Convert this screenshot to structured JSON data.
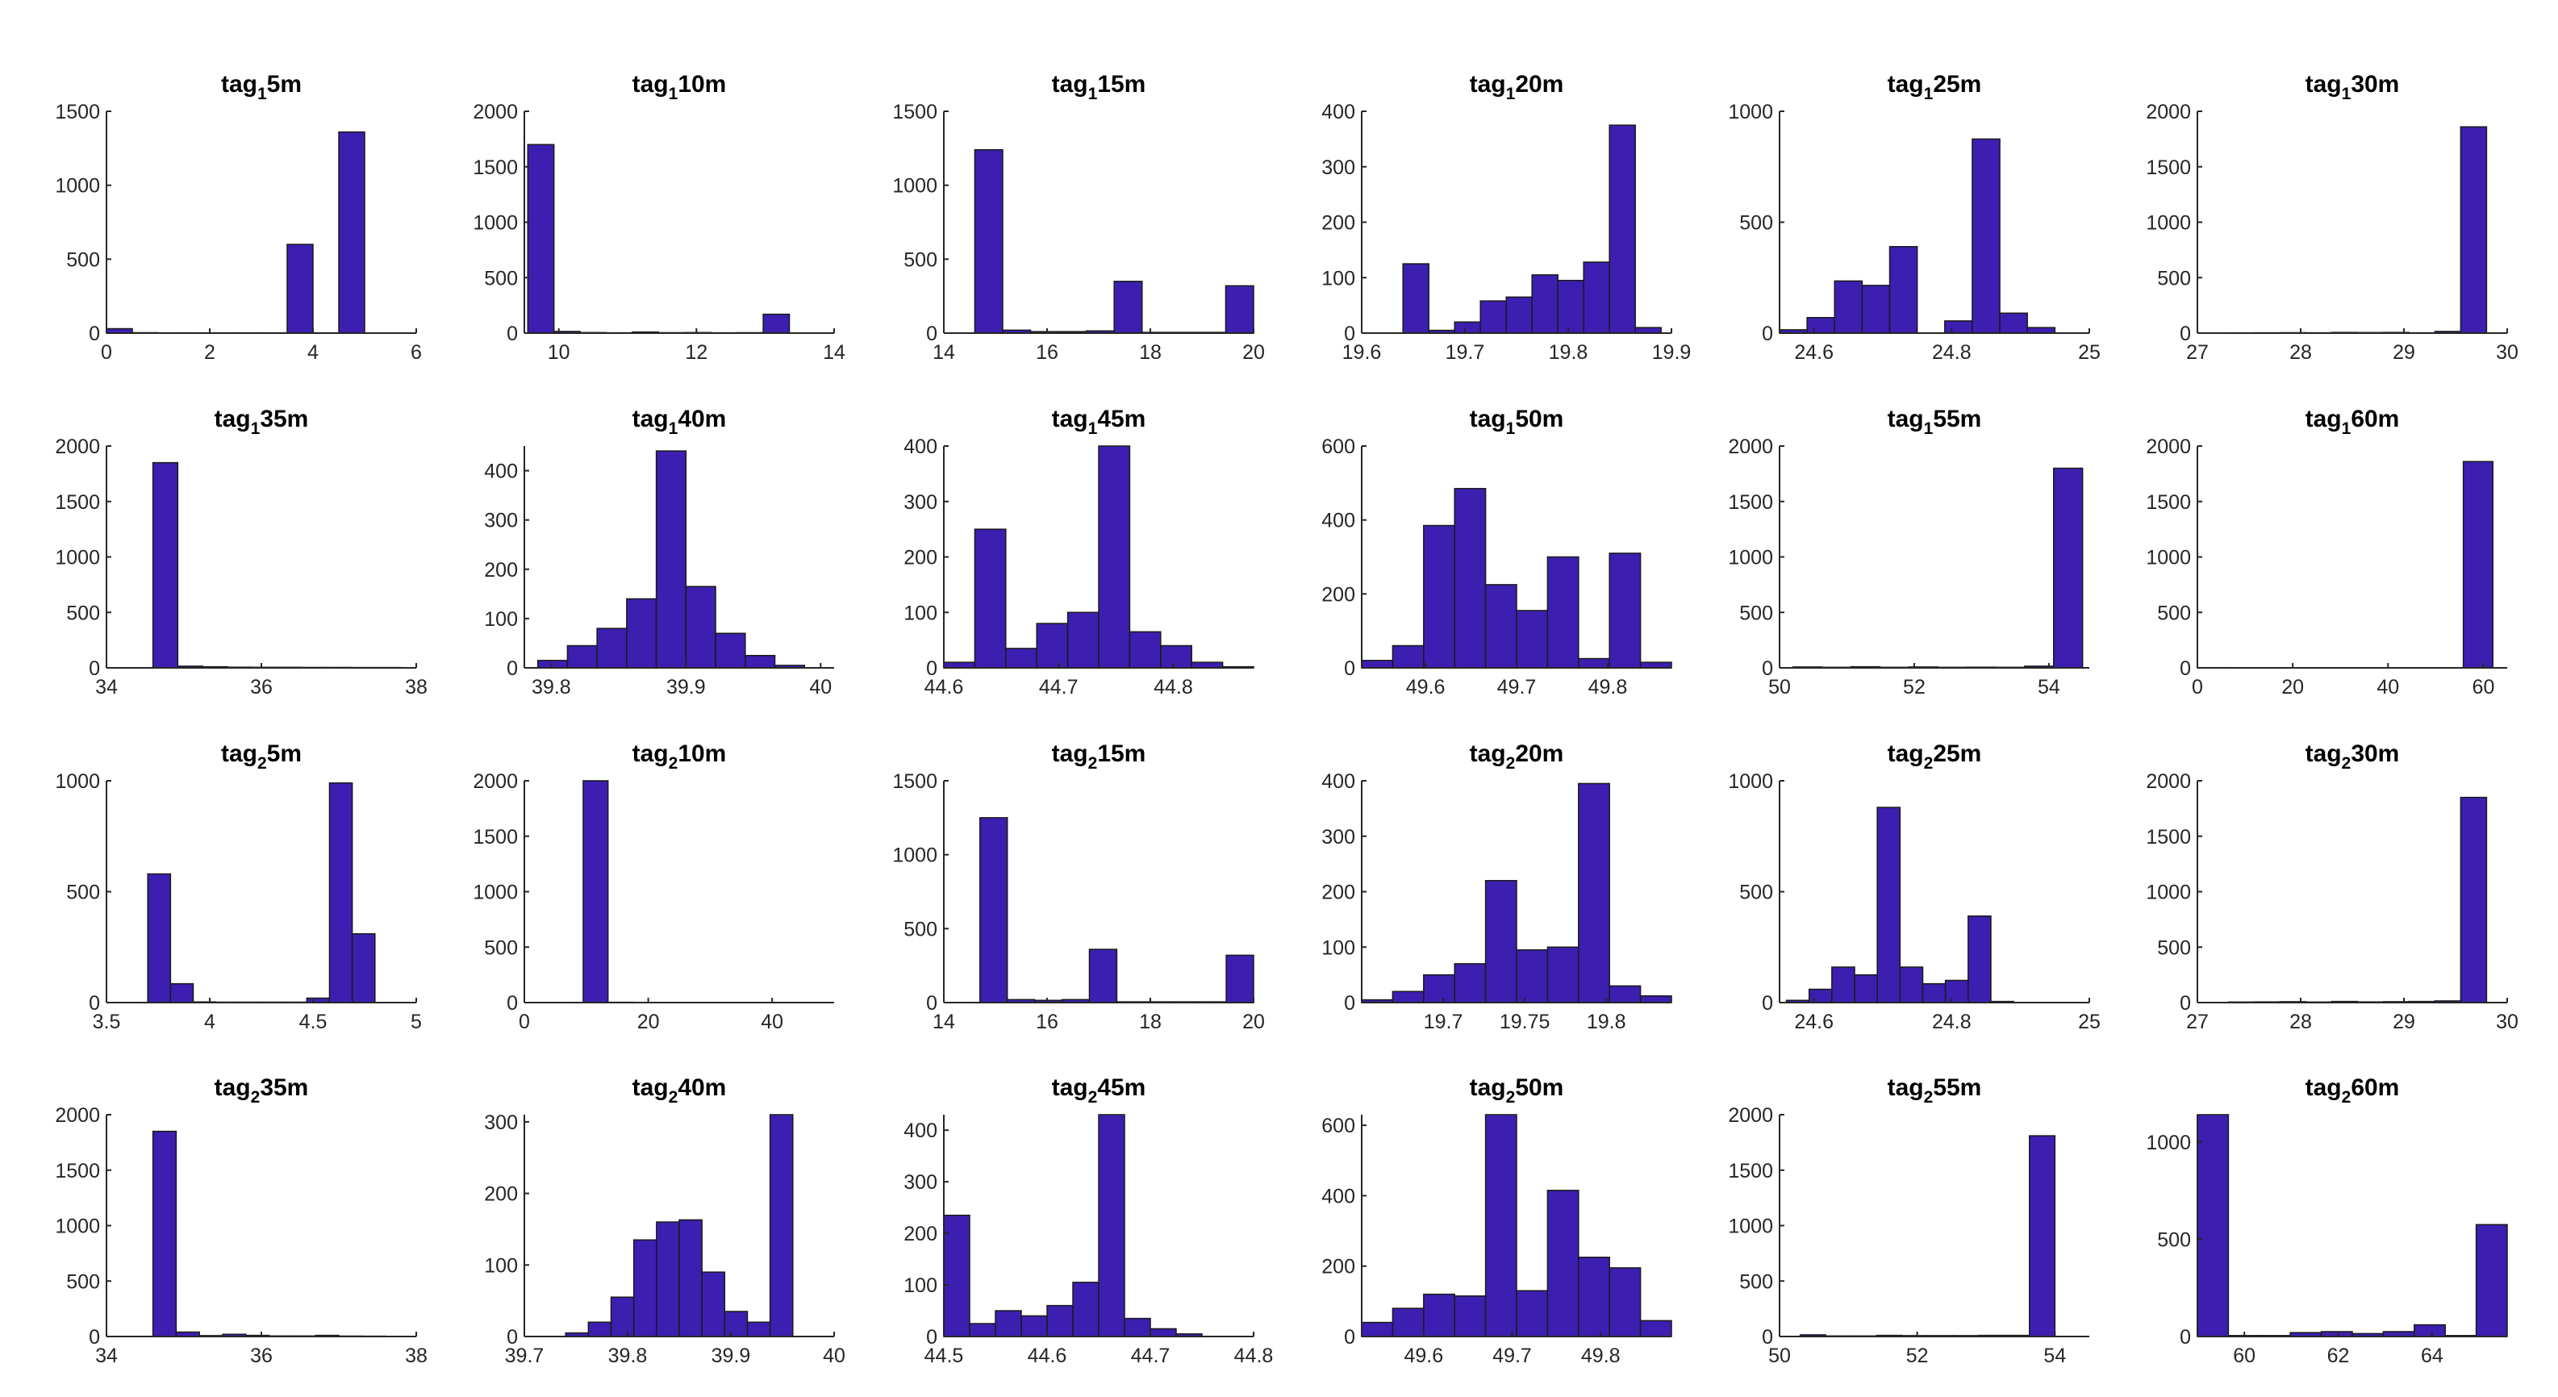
{
  "chart_data": [
    {
      "type": "bar",
      "title": "tag₁5m",
      "title_base": "tag",
      "title_sub": "1",
      "title_rest": "5m",
      "xlim": [
        0,
        6
      ],
      "ylim": [
        0,
        1500
      ],
      "xticks": [
        0,
        2,
        4,
        6
      ],
      "yticks": [
        0,
        500,
        1000,
        1500
      ],
      "bin_edges": [
        0,
        0.5,
        1,
        1.5,
        2,
        2.5,
        3,
        3.5,
        4,
        4.5,
        5
      ],
      "counts": [
        30,
        3,
        2,
        2,
        2,
        2,
        2,
        600,
        2,
        1360
      ]
    },
    {
      "type": "bar",
      "title": "tag₁10m",
      "title_base": "tag",
      "title_sub": "1",
      "title_rest": "10m",
      "xlim": [
        9.5,
        14
      ],
      "ylim": [
        0,
        2000
      ],
      "xticks": [
        10,
        12,
        14
      ],
      "yticks": [
        0,
        500,
        1000,
        1500,
        2000
      ],
      "bin_edges": [
        9.55,
        9.93,
        10.31,
        10.69,
        11.07,
        11.45,
        11.83,
        12.21,
        12.59,
        12.97,
        13.35
      ],
      "counts": [
        1700,
        15,
        5,
        3,
        10,
        4,
        5,
        3,
        4,
        170
      ]
    },
    {
      "type": "bar",
      "title": "tag₁15m",
      "title_base": "tag",
      "title_sub": "1",
      "title_rest": "15m",
      "xlim": [
        14,
        20
      ],
      "ylim": [
        0,
        1500
      ],
      "xticks": [
        14,
        16,
        18,
        20
      ],
      "yticks": [
        0,
        500,
        1000,
        1500
      ],
      "bin_edges": [
        14.6,
        15.14,
        15.68,
        16.22,
        16.76,
        17.3,
        17.84,
        18.38,
        18.92,
        19.46,
        20.0
      ],
      "counts": [
        1240,
        20,
        10,
        10,
        15,
        350,
        5,
        5,
        5,
        320
      ]
    },
    {
      "type": "bar",
      "title": "tag₁20m",
      "title_base": "tag",
      "title_sub": "1",
      "title_rest": "20m",
      "xlim": [
        19.6,
        19.9
      ],
      "ylim": [
        0,
        400
      ],
      "xticks": [
        19.6,
        19.7,
        19.8,
        19.9
      ],
      "yticks": [
        0,
        100,
        200,
        300,
        400
      ],
      "bin_edges": [
        19.64,
        19.665,
        19.69,
        19.715,
        19.74,
        19.765,
        19.79,
        19.815,
        19.84,
        19.865,
        19.89
      ],
      "counts": [
        125,
        5,
        20,
        58,
        65,
        105,
        95,
        128,
        375,
        10
      ]
    },
    {
      "type": "bar",
      "title": "tag₁25m",
      "title_base": "tag",
      "title_sub": "1",
      "title_rest": "25m",
      "xlim": [
        24.55,
        25
      ],
      "ylim": [
        0,
        1000
      ],
      "xticks": [
        24.6,
        24.8,
        25
      ],
      "yticks": [
        0,
        500,
        1000
      ],
      "bin_edges": [
        24.55,
        24.59,
        24.63,
        24.67,
        24.71,
        24.75,
        24.79,
        24.83,
        24.87,
        24.91,
        24.95
      ],
      "counts": [
        15,
        70,
        235,
        215,
        390,
        0,
        55,
        875,
        90,
        25
      ]
    },
    {
      "type": "bar",
      "title": "tag₁30m",
      "title_base": "tag",
      "title_sub": "1",
      "title_rest": "30m",
      "xlim": [
        27,
        30
      ],
      "ylim": [
        0,
        2000
      ],
      "xticks": [
        27,
        28,
        29,
        30
      ],
      "yticks": [
        0,
        500,
        1000,
        1500,
        2000
      ],
      "bin_edges": [
        27.3,
        27.55,
        27.8,
        28.05,
        28.3,
        28.55,
        28.8,
        29.05,
        29.3,
        29.55,
        29.8
      ],
      "counts": [
        2,
        3,
        4,
        3,
        6,
        5,
        6,
        3,
        15,
        1860
      ]
    },
    {
      "type": "bar",
      "title": "tag₁35m",
      "title_base": "tag",
      "title_sub": "1",
      "title_rest": "35m",
      "xlim": [
        34,
        38
      ],
      "ylim": [
        0,
        2000
      ],
      "xticks": [
        34,
        36,
        38
      ],
      "yticks": [
        0,
        500,
        1000,
        1500,
        2000
      ],
      "bin_edges": [
        34.6,
        34.92,
        35.24,
        35.56,
        35.88,
        36.2,
        36.52,
        36.84,
        37.16,
        37.48,
        37.8
      ],
      "counts": [
        1850,
        15,
        10,
        6,
        5,
        5,
        4,
        4,
        3,
        3
      ]
    },
    {
      "type": "bar",
      "title": "tag₁40m",
      "title_base": "tag",
      "title_sub": "1",
      "title_rest": "40m",
      "xlim": [
        39.78,
        40.01
      ],
      "ylim": [
        0,
        450
      ],
      "xticks": [
        39.8,
        39.9,
        40
      ],
      "yticks": [
        0,
        100,
        200,
        300,
        400
      ],
      "bin_edges": [
        39.79,
        39.812,
        39.834,
        39.856,
        39.878,
        39.9,
        39.922,
        39.944,
        39.966,
        39.988,
        40.01
      ],
      "counts": [
        15,
        45,
        80,
        140,
        440,
        165,
        70,
        25,
        5,
        0
      ]
    },
    {
      "type": "bar",
      "title": "tag₁45m",
      "title_base": "tag",
      "title_sub": "1",
      "title_rest": "45m",
      "xlim": [
        44.6,
        44.87
      ],
      "ylim": [
        0,
        400
      ],
      "xticks": [
        44.6,
        44.7,
        44.8
      ],
      "yticks": [
        0,
        100,
        200,
        300,
        400
      ],
      "bin_edges": [
        44.6,
        44.627,
        44.654,
        44.681,
        44.708,
        44.735,
        44.762,
        44.789,
        44.816,
        44.843,
        44.87
      ],
      "counts": [
        10,
        250,
        35,
        80,
        100,
        400,
        65,
        40,
        10,
        2
      ]
    },
    {
      "type": "bar",
      "title": "tag₁50m",
      "title_base": "tag",
      "title_sub": "1",
      "title_rest": "50m",
      "xlim": [
        49.53,
        49.87
      ],
      "ylim": [
        0,
        600
      ],
      "xticks": [
        49.6,
        49.7,
        49.8
      ],
      "yticks": [
        0,
        200,
        400,
        600
      ],
      "bin_edges": [
        49.53,
        49.564,
        49.598,
        49.632,
        49.666,
        49.7,
        49.734,
        49.768,
        49.802,
        49.836,
        49.87
      ],
      "counts": [
        20,
        60,
        385,
        485,
        225,
        155,
        300,
        25,
        310,
        15
      ]
    },
    {
      "type": "bar",
      "title": "tag₁55m",
      "title_base": "tag",
      "title_sub": "1",
      "title_rest": "55m",
      "xlim": [
        50,
        54.6
      ],
      "ylim": [
        0,
        2000
      ],
      "xticks": [
        50,
        52,
        54
      ],
      "yticks": [
        0,
        500,
        1000,
        1500,
        2000
      ],
      "bin_edges": [
        50.2,
        50.63,
        51.06,
        51.49,
        51.92,
        52.35,
        52.78,
        53.21,
        53.64,
        54.07,
        54.5
      ],
      "counts": [
        8,
        5,
        10,
        5,
        8,
        5,
        6,
        5,
        15,
        1800
      ]
    },
    {
      "type": "bar",
      "title": "tag₁60m",
      "title_base": "tag",
      "title_sub": "1",
      "title_rest": "60m",
      "xlim": [
        0,
        65
      ],
      "ylim": [
        0,
        2000
      ],
      "xticks": [
        0,
        20,
        40,
        60
      ],
      "yticks": [
        0,
        500,
        1000,
        1500,
        2000
      ],
      "bin_edges": [
        0,
        6.2,
        12.4,
        18.6,
        24.8,
        31,
        37.2,
        43.4,
        49.6,
        55.8,
        62
      ],
      "counts": [
        2,
        1,
        1,
        1,
        1,
        1,
        1,
        1,
        1,
        1860
      ]
    },
    {
      "type": "bar",
      "title": "tag₂5m",
      "title_base": "tag",
      "title_sub": "2",
      "title_rest": "5m",
      "xlim": [
        3.5,
        5
      ],
      "ylim": [
        0,
        1000
      ],
      "xticks": [
        3.5,
        4,
        4.5,
        5
      ],
      "yticks": [
        0,
        500,
        1000
      ],
      "bin_edges": [
        3.7,
        3.81,
        3.92,
        4.03,
        4.14,
        4.25,
        4.36,
        4.47,
        4.58,
        4.69,
        4.8
      ],
      "counts": [
        580,
        85,
        3,
        2,
        2,
        2,
        2,
        20,
        990,
        310
      ]
    },
    {
      "type": "bar",
      "title": "tag₂10m",
      "title_base": "tag",
      "title_sub": "2",
      "title_rest": "10m",
      "xlim": [
        0,
        50
      ],
      "ylim": [
        0,
        2000
      ],
      "xticks": [
        0,
        20,
        40
      ],
      "yticks": [
        0,
        500,
        1000,
        1500,
        2000
      ],
      "bin_edges": [
        9.5,
        13.5,
        17.5,
        21.5,
        25.5,
        29.5,
        33.5,
        37.5,
        41.5,
        45.5,
        49.5
      ],
      "counts": [
        2000,
        3,
        2,
        1,
        1,
        1,
        1,
        1,
        1,
        1
      ]
    },
    {
      "type": "bar",
      "title": "tag₂15m",
      "title_base": "tag",
      "title_sub": "2",
      "title_rest": "15m",
      "xlim": [
        14,
        20
      ],
      "ylim": [
        0,
        1500
      ],
      "xticks": [
        14,
        16,
        18,
        20
      ],
      "yticks": [
        0,
        500,
        1000,
        1500
      ],
      "bin_edges": [
        14.7,
        15.23,
        15.76,
        16.29,
        16.82,
        17.35,
        17.88,
        18.41,
        18.94,
        19.47,
        20.0
      ],
      "counts": [
        1250,
        20,
        15,
        20,
        360,
        5,
        5,
        5,
        5,
        320
      ]
    },
    {
      "type": "bar",
      "title": "tag₂20m",
      "title_base": "tag",
      "title_sub": "2",
      "title_rest": "20m",
      "xlim": [
        19.65,
        19.84
      ],
      "ylim": [
        0,
        400
      ],
      "xticks": [
        19.7,
        19.75,
        19.8
      ],
      "yticks": [
        0,
        100,
        200,
        300,
        400
      ],
      "bin_edges": [
        19.65,
        19.669,
        19.688,
        19.707,
        19.726,
        19.745,
        19.764,
        19.783,
        19.802,
        19.821,
        19.84
      ],
      "counts": [
        5,
        20,
        50,
        70,
        220,
        95,
        100,
        395,
        30,
        12
      ]
    },
    {
      "type": "bar",
      "title": "tag₂25m",
      "title_base": "tag",
      "title_sub": "2",
      "title_rest": "25m",
      "xlim": [
        24.55,
        25
      ],
      "ylim": [
        0,
        1000
      ],
      "xticks": [
        24.6,
        24.8,
        25
      ],
      "yticks": [
        0,
        500,
        1000
      ],
      "bin_edges": [
        24.56,
        24.593,
        24.626,
        24.659,
        24.692,
        24.725,
        24.758,
        24.791,
        24.824,
        24.857,
        24.89
      ],
      "counts": [
        10,
        60,
        160,
        125,
        880,
        160,
        85,
        100,
        390,
        5
      ]
    },
    {
      "type": "bar",
      "title": "tag₂30m",
      "title_base": "tag",
      "title_sub": "2",
      "title_rest": "30m",
      "xlim": [
        27,
        30
      ],
      "ylim": [
        0,
        2000
      ],
      "xticks": [
        27,
        28,
        29,
        30
      ],
      "yticks": [
        0,
        500,
        1000,
        1500,
        2000
      ],
      "bin_edges": [
        27.3,
        27.55,
        27.8,
        28.05,
        28.3,
        28.55,
        28.8,
        29.05,
        29.3,
        29.55,
        29.8
      ],
      "counts": [
        5,
        6,
        8,
        5,
        10,
        6,
        8,
        10,
        15,
        1850
      ]
    },
    {
      "type": "bar",
      "title": "tag₂35m",
      "title_base": "tag",
      "title_sub": "2",
      "title_rest": "35m",
      "xlim": [
        34,
        38
      ],
      "ylim": [
        0,
        2000
      ],
      "xticks": [
        34,
        36,
        38
      ],
      "yticks": [
        0,
        500,
        1000,
        1500,
        2000
      ],
      "bin_edges": [
        34.6,
        34.9,
        35.2,
        35.5,
        35.8,
        36.1,
        36.4,
        36.7,
        37.0,
        37.3,
        37.6
      ],
      "counts": [
        1850,
        40,
        8,
        20,
        10,
        5,
        5,
        10,
        4,
        3
      ]
    },
    {
      "type": "bar",
      "title": "tag₂40m",
      "title_base": "tag",
      "title_sub": "2",
      "title_rest": "40m",
      "xlim": [
        39.7,
        40
      ],
      "ylim": [
        0,
        310
      ],
      "xticks": [
        39.7,
        39.8,
        39.9,
        40
      ],
      "yticks": [
        0,
        100,
        200,
        300
      ],
      "bin_edges": [
        39.74,
        39.762,
        39.784,
        39.806,
        39.828,
        39.85,
        39.872,
        39.894,
        39.916,
        39.938,
        39.96
      ],
      "counts": [
        5,
        20,
        55,
        135,
        160,
        163,
        90,
        35,
        20,
        315
      ]
    },
    {
      "type": "bar",
      "title": "tag₂45m",
      "title_base": "tag",
      "title_sub": "2",
      "title_rest": "45m",
      "xlim": [
        44.5,
        44.8
      ],
      "ylim": [
        0,
        430
      ],
      "xticks": [
        44.5,
        44.6,
        44.7,
        44.8
      ],
      "yticks": [
        0,
        100,
        200,
        300,
        400
      ],
      "bin_edges": [
        44.5,
        44.525,
        44.55,
        44.575,
        44.6,
        44.625,
        44.65,
        44.675,
        44.7,
        44.725,
        44.75
      ],
      "counts": [
        235,
        25,
        50,
        40,
        60,
        105,
        430,
        35,
        15,
        5
      ]
    },
    {
      "type": "bar",
      "title": "tag₂50m",
      "title_base": "tag",
      "title_sub": "2",
      "title_rest": "50m",
      "xlim": [
        49.53,
        49.88
      ],
      "ylim": [
        0,
        630
      ],
      "xticks": [
        49.6,
        49.7,
        49.8
      ],
      "yticks": [
        0,
        200,
        400,
        600
      ],
      "bin_edges": [
        49.53,
        49.565,
        49.6,
        49.635,
        49.67,
        49.705,
        49.74,
        49.775,
        49.81,
        49.845,
        49.88
      ],
      "counts": [
        40,
        80,
        120,
        115,
        630,
        130,
        415,
        225,
        195,
        45
      ]
    },
    {
      "type": "bar",
      "title": "tag₂55m",
      "title_base": "tag",
      "title_sub": "2",
      "title_rest": "55m",
      "xlim": [
        50,
        54.5
      ],
      "ylim": [
        0,
        2000
      ],
      "xticks": [
        50,
        52,
        54
      ],
      "yticks": [
        0,
        500,
        1000,
        1500,
        2000
      ],
      "bin_edges": [
        50.3,
        50.67,
        51.04,
        51.41,
        51.78,
        52.15,
        52.52,
        52.89,
        53.26,
        53.63,
        54.0
      ],
      "counts": [
        15,
        5,
        5,
        10,
        8,
        8,
        8,
        10,
        10,
        1810
      ]
    },
    {
      "type": "bar",
      "title": "tag₂60m",
      "title_base": "tag",
      "title_sub": "2",
      "title_rest": "60m",
      "xlim": [
        59,
        65.6
      ],
      "ylim": [
        0,
        1140
      ],
      "xticks": [
        60,
        62,
        64
      ],
      "yticks": [
        0,
        500,
        1000
      ],
      "bin_edges": [
        59,
        59.66,
        60.32,
        60.98,
        61.64,
        62.3,
        62.96,
        63.62,
        64.28,
        64.94,
        65.6
      ],
      "counts": [
        1140,
        5,
        5,
        20,
        25,
        15,
        25,
        60,
        5,
        575
      ]
    }
  ]
}
